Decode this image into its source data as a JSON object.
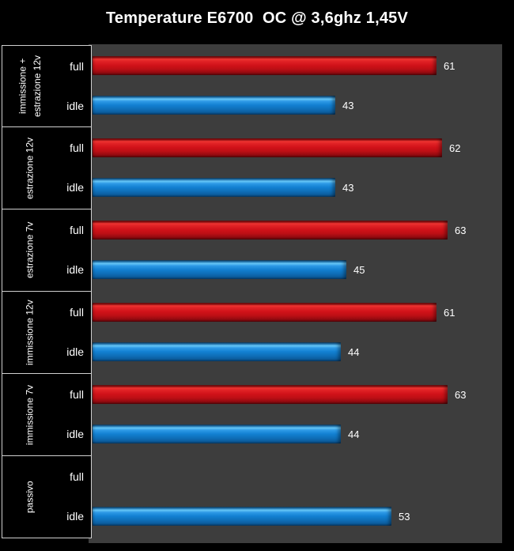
{
  "title": "Temperature E6700  OC @ 3,6ghz 1,45V",
  "chart_data": {
    "type": "bar",
    "orientation": "horizontal",
    "title": "Temperature E6700  OC @ 3,6ghz 1,45V",
    "series_labels": [
      "full",
      "idle"
    ],
    "categories": [
      "immissione +\nestrazione 12v",
      "estrazione 12v",
      "estrazione 7v",
      "immissione 12v",
      "immissione 7v",
      "passivo"
    ],
    "groups": [
      {
        "category": "immissione +\nestrazione 12v",
        "full": 61,
        "idle": 43
      },
      {
        "category": "estrazione 12v",
        "full": 62,
        "idle": 43
      },
      {
        "category": "estrazione 7v",
        "full": 63,
        "idle": 45
      },
      {
        "category": "immissione 12v",
        "full": 61,
        "idle": 44
      },
      {
        "category": "immissione 7v",
        "full": 63,
        "idle": 44
      },
      {
        "category": "passivo",
        "full": null,
        "idle": 53
      }
    ],
    "data_labels_shown": true,
    "legend_position": "none",
    "grid": false,
    "axis_ticks_shown": false,
    "colors": {
      "full_bar": "#d01219",
      "idle_bar": "#1280d2",
      "plot_background": "#3d3d3d",
      "page_background": "#000000",
      "text": "#ffffff",
      "separator_line": "#cfcfcf"
    }
  }
}
